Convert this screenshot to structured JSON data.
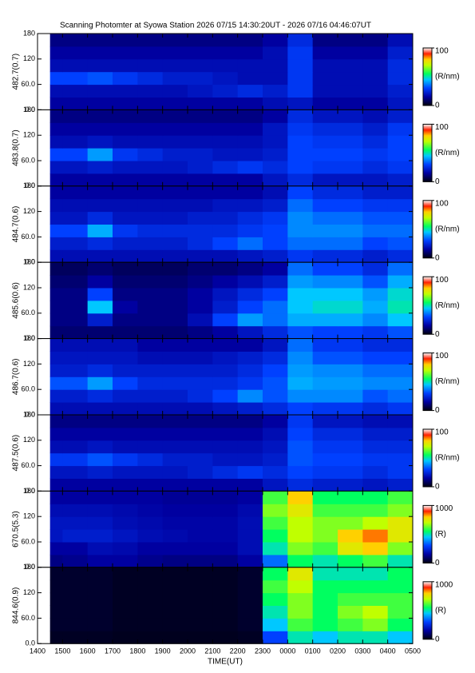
{
  "title": "Scanning Photomter at Syowa Station  2026 07/15 14:30:20UT - 2026 07/16 04:46:07UT",
  "x_axis": {
    "label": "TIME(UT)",
    "xlim": [
      14,
      29
    ],
    "xticks": [
      {
        "value": 14,
        "label": "1400"
      },
      {
        "value": 15,
        "label": "1500"
      },
      {
        "value": 16,
        "label": "1600"
      },
      {
        "value": 17,
        "label": "1700"
      },
      {
        "value": 18,
        "label": "1800"
      },
      {
        "value": 19,
        "label": "1900"
      },
      {
        "value": 20,
        "label": "2000"
      },
      {
        "value": 21,
        "label": "2100"
      },
      {
        "value": 22,
        "label": "2200"
      },
      {
        "value": 23,
        "label": "2300"
      },
      {
        "value": 24,
        "label": "0000"
      },
      {
        "value": 25,
        "label": "0100"
      },
      {
        "value": 26,
        "label": "0200"
      },
      {
        "value": 27,
        "label": "0300"
      },
      {
        "value": 28,
        "label": "0400"
      },
      {
        "value": 29,
        "label": "0500"
      }
    ],
    "xbins": [
      14.5,
      15,
      16,
      17,
      18,
      19,
      20,
      21,
      22,
      23,
      24,
      25,
      26,
      27,
      28,
      29
    ]
  },
  "chart_data": [
    {
      "type": "heatmap",
      "ylabel": "482.7(0.7)",
      "ylim": [
        0,
        180
      ],
      "yticks": [
        {
          "value": 0,
          "label": "0.0"
        },
        {
          "value": 60,
          "label": "60.0"
        },
        120,
        180
      ],
      "ybins": [
        0,
        30,
        60,
        90,
        120,
        150,
        180
      ],
      "colorbar": {
        "lim": [
          0,
          100
        ],
        "ticks": [
          0,
          100
        ],
        "label": "(R/nm)"
      },
      "values": [
        [
          15,
          15,
          15,
          15,
          15,
          15,
          15,
          15,
          15,
          18,
          20,
          15,
          15,
          15,
          20
        ],
        [
          18,
          18,
          18,
          18,
          18,
          18,
          20,
          22,
          25,
          22,
          28,
          18,
          18,
          18,
          22
        ],
        [
          30,
          30,
          32,
          28,
          25,
          22,
          22,
          20,
          18,
          18,
          28,
          18,
          18,
          18,
          25
        ],
        [
          18,
          18,
          18,
          18,
          18,
          18,
          18,
          18,
          18,
          18,
          28,
          18,
          18,
          18,
          25
        ],
        [
          15,
          15,
          15,
          15,
          15,
          15,
          15,
          15,
          15,
          18,
          28,
          15,
          15,
          15,
          22
        ],
        [
          12,
          12,
          12,
          12,
          12,
          12,
          12,
          12,
          12,
          15,
          25,
          12,
          12,
          12,
          18
        ]
      ]
    },
    {
      "type": "heatmap",
      "ylabel": "483.8(0.7)",
      "ylim": [
        0,
        180
      ],
      "yticks": [
        {
          "value": 0,
          "label": "0.0"
        },
        {
          "value": 60,
          "label": "60.0"
        },
        120,
        180
      ],
      "ybins": [
        0,
        30,
        60,
        90,
        120,
        150,
        180
      ],
      "colorbar": {
        "lim": [
          0,
          100
        ],
        "ticks": [
          0,
          100
        ],
        "label": "(R/nm)"
      },
      "values": [
        [
          15,
          15,
          15,
          15,
          15,
          15,
          15,
          15,
          15,
          20,
          25,
          20,
          20,
          20,
          22
        ],
        [
          20,
          20,
          22,
          20,
          20,
          20,
          22,
          25,
          28,
          25,
          30,
          28,
          28,
          25,
          28
        ],
        [
          30,
          30,
          40,
          28,
          25,
          22,
          22,
          20,
          20,
          22,
          30,
          30,
          30,
          28,
          30
        ],
        [
          18,
          18,
          20,
          18,
          18,
          18,
          18,
          18,
          18,
          20,
          30,
          28,
          28,
          25,
          30
        ],
        [
          15,
          15,
          15,
          15,
          15,
          15,
          15,
          15,
          15,
          20,
          28,
          25,
          25,
          22,
          28
        ],
        [
          12,
          12,
          12,
          12,
          12,
          12,
          12,
          12,
          12,
          15,
          25,
          20,
          20,
          18,
          22
        ]
      ]
    },
    {
      "type": "heatmap",
      "ylabel": "484.7(0.6)",
      "ylim": [
        0,
        180
      ],
      "yticks": [
        {
          "value": 0,
          "label": "0.0"
        },
        {
          "value": 60,
          "label": "60.0"
        },
        120,
        180
      ],
      "ybins": [
        0,
        30,
        60,
        90,
        120,
        150,
        180
      ],
      "colorbar": {
        "lim": [
          0,
          100
        ],
        "ticks": [
          0,
          100
        ],
        "label": "(R/nm)"
      },
      "values": [
        [
          18,
          18,
          18,
          18,
          18,
          18,
          18,
          18,
          20,
          22,
          28,
          25,
          25,
          22,
          25
        ],
        [
          22,
          22,
          25,
          22,
          22,
          22,
          25,
          30,
          35,
          30,
          35,
          35,
          35,
          30,
          32
        ],
        [
          30,
          30,
          42,
          28,
          25,
          25,
          25,
          25,
          28,
          30,
          38,
          38,
          38,
          35,
          35
        ],
        [
          20,
          20,
          25,
          20,
          20,
          20,
          22,
          22,
          25,
          28,
          38,
          35,
          35,
          32,
          32
        ],
        [
          18,
          18,
          18,
          18,
          18,
          18,
          18,
          20,
          20,
          22,
          35,
          30,
          30,
          28,
          28
        ],
        [
          15,
          15,
          15,
          15,
          15,
          15,
          15,
          15,
          15,
          18,
          30,
          25,
          25,
          22,
          22
        ]
      ]
    },
    {
      "type": "heatmap",
      "ylabel": "485.6(0.6)",
      "ylim": [
        0,
        180
      ],
      "yticks": [
        {
          "value": 0,
          "label": "0.0"
        },
        {
          "value": 60,
          "label": "60.0"
        },
        120,
        180
      ],
      "ybins": [
        0,
        30,
        60,
        90,
        120,
        150,
        180
      ],
      "colorbar": {
        "lim": [
          0,
          100
        ],
        "ticks": [
          0,
          100
        ],
        "label": "(R/nm)"
      },
      "values": [
        [
          10,
          10,
          10,
          10,
          10,
          10,
          12,
          15,
          20,
          25,
          32,
          30,
          30,
          28,
          32
        ],
        [
          12,
          12,
          22,
          12,
          12,
          12,
          18,
          30,
          40,
          35,
          42,
          42,
          42,
          38,
          45
        ],
        [
          12,
          12,
          45,
          15,
          12,
          12,
          15,
          22,
          30,
          35,
          45,
          48,
          48,
          42,
          50
        ],
        [
          12,
          12,
          30,
          12,
          12,
          12,
          15,
          20,
          25,
          30,
          45,
          45,
          45,
          40,
          48
        ],
        [
          10,
          10,
          15,
          10,
          10,
          10,
          12,
          15,
          18,
          22,
          40,
          38,
          38,
          32,
          42
        ],
        [
          8,
          8,
          10,
          8,
          8,
          8,
          10,
          10,
          12,
          15,
          35,
          30,
          30,
          25,
          35
        ]
      ]
    },
    {
      "type": "heatmap",
      "ylabel": "486.7(0.6)",
      "ylim": [
        0,
        180
      ],
      "yticks": [
        {
          "value": 0,
          "label": "0.0"
        },
        {
          "value": 60,
          "label": "60.0"
        },
        120,
        180
      ],
      "ybins": [
        0,
        30,
        60,
        90,
        120,
        150,
        180
      ],
      "colorbar": {
        "lim": [
          0,
          100
        ],
        "ticks": [
          0,
          100
        ],
        "label": "(R/nm)"
      },
      "values": [
        [
          18,
          18,
          18,
          18,
          18,
          18,
          18,
          20,
          22,
          25,
          30,
          28,
          28,
          25,
          28
        ],
        [
          22,
          22,
          25,
          22,
          22,
          22,
          25,
          30,
          38,
          32,
          38,
          38,
          38,
          32,
          35
        ],
        [
          32,
          32,
          40,
          30,
          25,
          25,
          25,
          25,
          28,
          32,
          42,
          40,
          40,
          38,
          38
        ],
        [
          22,
          22,
          25,
          22,
          22,
          22,
          22,
          22,
          25,
          30,
          40,
          38,
          38,
          35,
          35
        ],
        [
          20,
          20,
          20,
          20,
          18,
          18,
          18,
          20,
          22,
          25,
          38,
          32,
          32,
          30,
          30
        ],
        [
          18,
          18,
          18,
          18,
          15,
          15,
          15,
          15,
          15,
          20,
          35,
          28,
          28,
          25,
          25
        ]
      ]
    },
    {
      "type": "heatmap",
      "ylabel": "487.5(0.6)",
      "ylim": [
        0,
        180
      ],
      "yticks": [
        {
          "value": 0,
          "label": "0.0"
        },
        {
          "value": 60,
          "label": "60.0"
        },
        120,
        180
      ],
      "ybins": [
        0,
        30,
        60,
        90,
        120,
        150,
        180
      ],
      "colorbar": {
        "lim": [
          0,
          100
        ],
        "ticks": [
          0,
          100
        ],
        "label": "(R/nm)"
      },
      "values": [
        [
          15,
          15,
          15,
          15,
          15,
          15,
          15,
          15,
          15,
          20,
          25,
          22,
          22,
          20,
          22
        ],
        [
          20,
          20,
          22,
          20,
          20,
          20,
          22,
          25,
          28,
          25,
          30,
          28,
          28,
          25,
          28
        ],
        [
          28,
          28,
          32,
          28,
          25,
          22,
          22,
          20,
          20,
          22,
          32,
          30,
          30,
          28,
          28
        ],
        [
          18,
          18,
          20,
          18,
          18,
          18,
          18,
          18,
          18,
          20,
          32,
          28,
          28,
          25,
          25
        ],
        [
          15,
          15,
          15,
          15,
          15,
          15,
          15,
          15,
          15,
          18,
          30,
          25,
          25,
          22,
          22
        ],
        [
          12,
          12,
          12,
          12,
          12,
          12,
          12,
          12,
          12,
          15,
          28,
          20,
          20,
          18,
          18
        ]
      ]
    },
    {
      "type": "heatmap",
      "ylabel": "670.5(5.3)",
      "ylim": [
        0,
        180
      ],
      "yticks": [
        {
          "value": 0,
          "label": "0.0"
        },
        {
          "value": 60,
          "label": "60.0"
        },
        120,
        180
      ],
      "ybins": [
        0,
        30,
        60,
        90,
        120,
        150,
        180
      ],
      "colorbar": {
        "lim": [
          0,
          1000
        ],
        "ticks": [
          0,
          1000
        ],
        "label": "(R)"
      },
      "values": [
        [
          120,
          130,
          150,
          150,
          130,
          120,
          120,
          120,
          150,
          350,
          550,
          500,
          550,
          600,
          500
        ],
        [
          150,
          150,
          180,
          170,
          150,
          150,
          150,
          150,
          180,
          500,
          650,
          600,
          750,
          800,
          650
        ],
        [
          200,
          220,
          220,
          200,
          180,
          170,
          160,
          160,
          180,
          550,
          700,
          650,
          800,
          850,
          750
        ],
        [
          200,
          200,
          200,
          180,
          170,
          160,
          160,
          160,
          180,
          600,
          700,
          650,
          650,
          700,
          750
        ],
        [
          180,
          180,
          180,
          170,
          160,
          150,
          150,
          150,
          170,
          650,
          750,
          600,
          600,
          600,
          650
        ],
        [
          150,
          150,
          150,
          150,
          150,
          140,
          140,
          140,
          150,
          600,
          800,
          550,
          550,
          550,
          600
        ]
      ]
    },
    {
      "type": "heatmap",
      "ylabel": "844.6(0.9)",
      "ylim": [
        0,
        180
      ],
      "yticks": [
        {
          "value": 0,
          "label": "0.0"
        },
        {
          "value": 60,
          "label": "60.0"
        },
        120,
        180
      ],
      "ybins": [
        0,
        30,
        60,
        90,
        120,
        150,
        180
      ],
      "colorbar": {
        "lim": [
          0,
          1000
        ],
        "ticks": [
          0,
          1000
        ],
        "label": "(R)"
      },
      "values": [
        [
          20,
          20,
          20,
          15,
          15,
          15,
          15,
          15,
          20,
          300,
          500,
          450,
          500,
          500,
          450
        ],
        [
          30,
          30,
          30,
          20,
          20,
          20,
          20,
          20,
          30,
          450,
          600,
          550,
          600,
          650,
          550
        ],
        [
          30,
          30,
          30,
          20,
          20,
          20,
          20,
          20,
          30,
          500,
          650,
          550,
          650,
          700,
          600
        ],
        [
          30,
          30,
          30,
          20,
          20,
          20,
          20,
          20,
          30,
          550,
          650,
          550,
          600,
          600,
          600
        ],
        [
          30,
          30,
          30,
          20,
          20,
          20,
          20,
          20,
          30,
          600,
          700,
          550,
          550,
          550,
          550
        ],
        [
          30,
          30,
          30,
          20,
          20,
          20,
          20,
          20,
          30,
          550,
          750,
          500,
          500,
          500,
          550
        ]
      ]
    }
  ]
}
